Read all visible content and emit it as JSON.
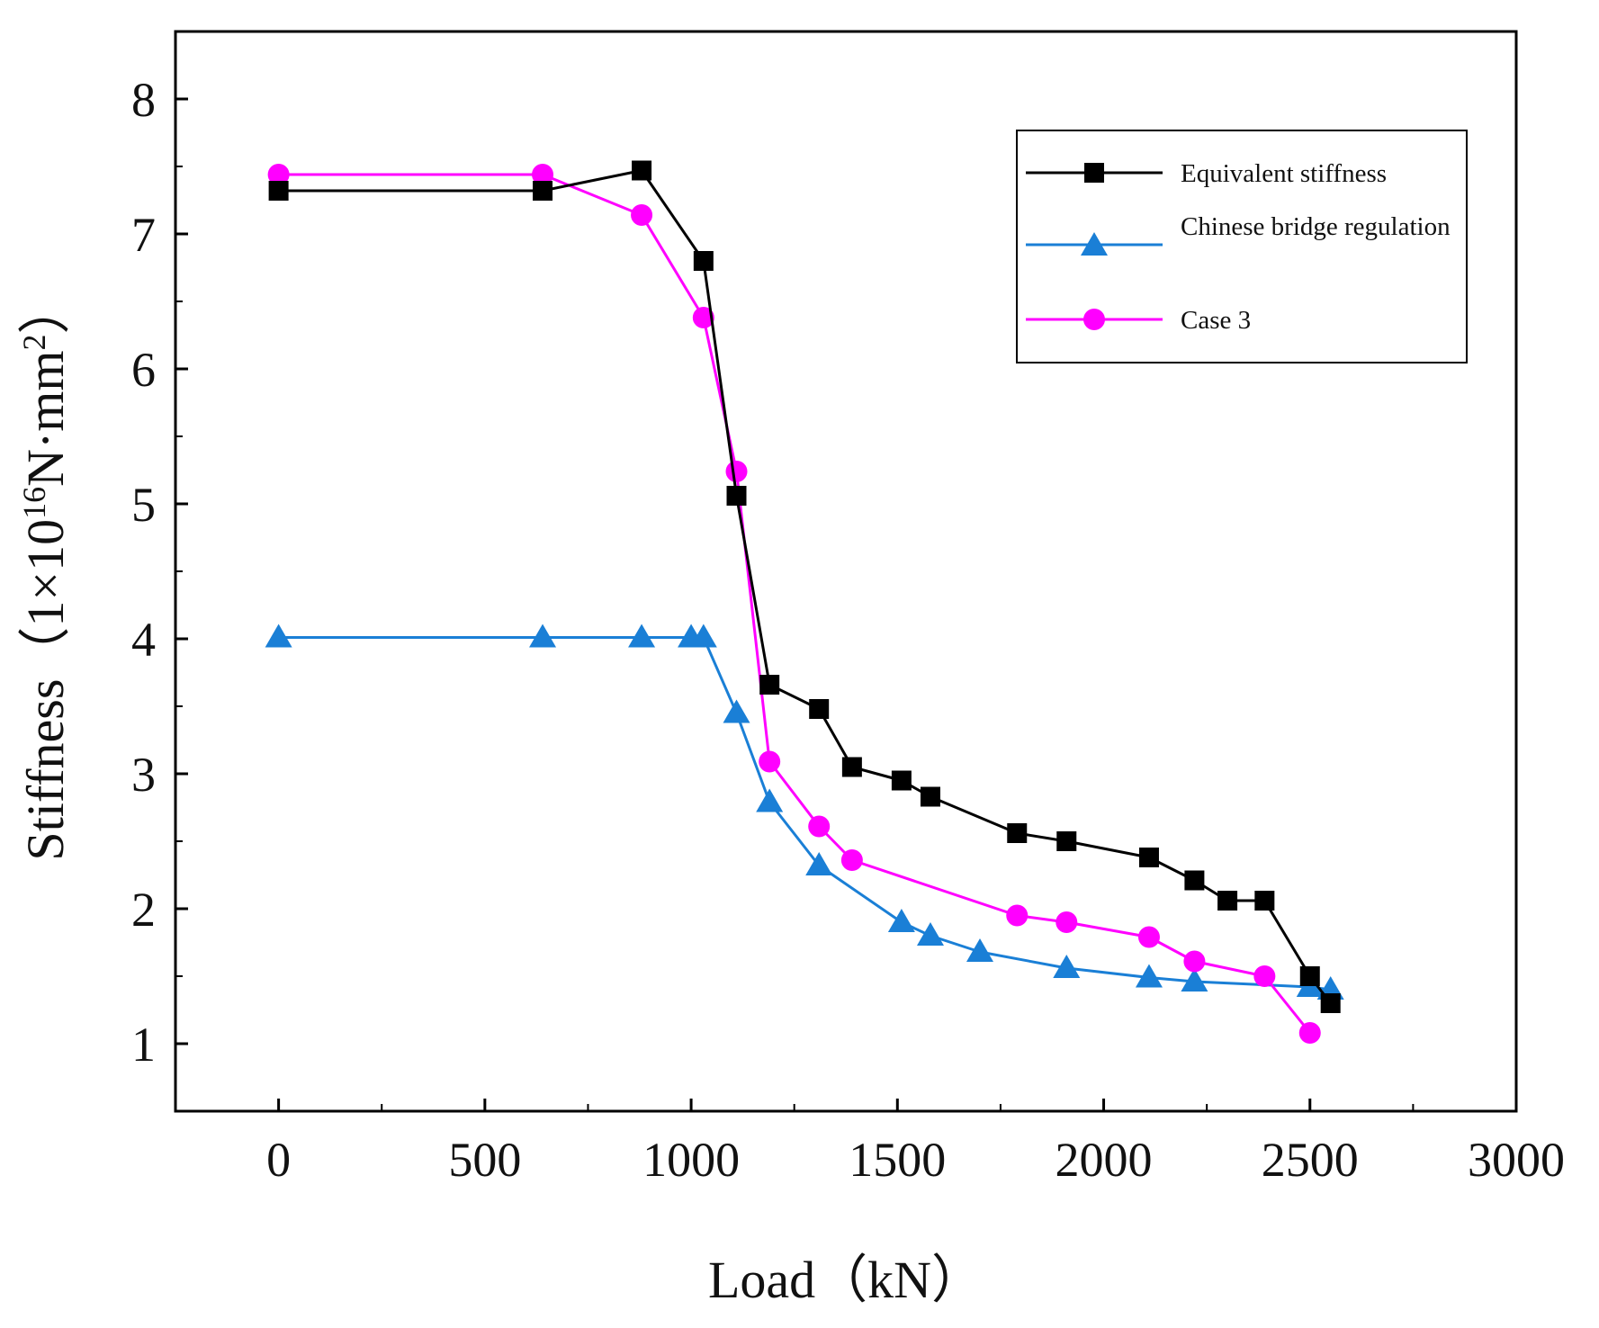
{
  "chart_data": {
    "type": "line",
    "title": "",
    "xlabel": "Load（kN）",
    "ylabel": {
      "prefix": "Stiffness（1×10",
      "exp": "16",
      "mid": "N·mm",
      "exp2": "2",
      "suffix": "）"
    },
    "xlim": [
      -250,
      3000
    ],
    "ylim": [
      0.5,
      8.5
    ],
    "xticks": [
      0,
      500,
      1000,
      1500,
      2000,
      2500,
      3000
    ],
    "yticks": [
      1,
      2,
      3,
      4,
      5,
      6,
      7,
      8
    ],
    "grid": false,
    "legend_position": "top-right",
    "series": [
      {
        "name": "Equivalent stiffness",
        "color": "#000000",
        "marker": "square",
        "x": [
          0,
          640,
          880,
          1030,
          1110,
          1190,
          1310,
          1390,
          1510,
          1580,
          1790,
          1910,
          2110,
          2220,
          2300,
          2390,
          2500,
          2550
        ],
        "y": [
          7.32,
          7.32,
          7.47,
          6.8,
          5.06,
          3.66,
          3.48,
          3.05,
          2.95,
          2.83,
          2.56,
          2.5,
          2.38,
          2.21,
          2.06,
          2.06,
          1.5,
          1.3
        ]
      },
      {
        "name": "Chinese bridge regulation",
        "color": "#1a7fd6",
        "marker": "triangle",
        "x": [
          0,
          640,
          880,
          1000,
          1030,
          1110,
          1190,
          1310,
          1510,
          1580,
          1700,
          1910,
          2110,
          2220,
          2500,
          2550
        ],
        "y": [
          4.01,
          4.01,
          4.01,
          4.01,
          4.01,
          3.45,
          2.79,
          2.32,
          1.9,
          1.8,
          1.68,
          1.56,
          1.49,
          1.46,
          1.42,
          1.4
        ]
      },
      {
        "name": "Case 3",
        "color": "#ff00ff",
        "marker": "circle",
        "x": [
          0,
          640,
          880,
          1030,
          1110,
          1190,
          1310,
          1390,
          1790,
          1910,
          2110,
          2220,
          2390,
          2500
        ],
        "y": [
          7.44,
          7.44,
          7.14,
          6.38,
          5.24,
          3.09,
          2.61,
          2.36,
          1.95,
          1.9,
          1.79,
          1.61,
          1.5,
          1.08
        ]
      }
    ]
  }
}
